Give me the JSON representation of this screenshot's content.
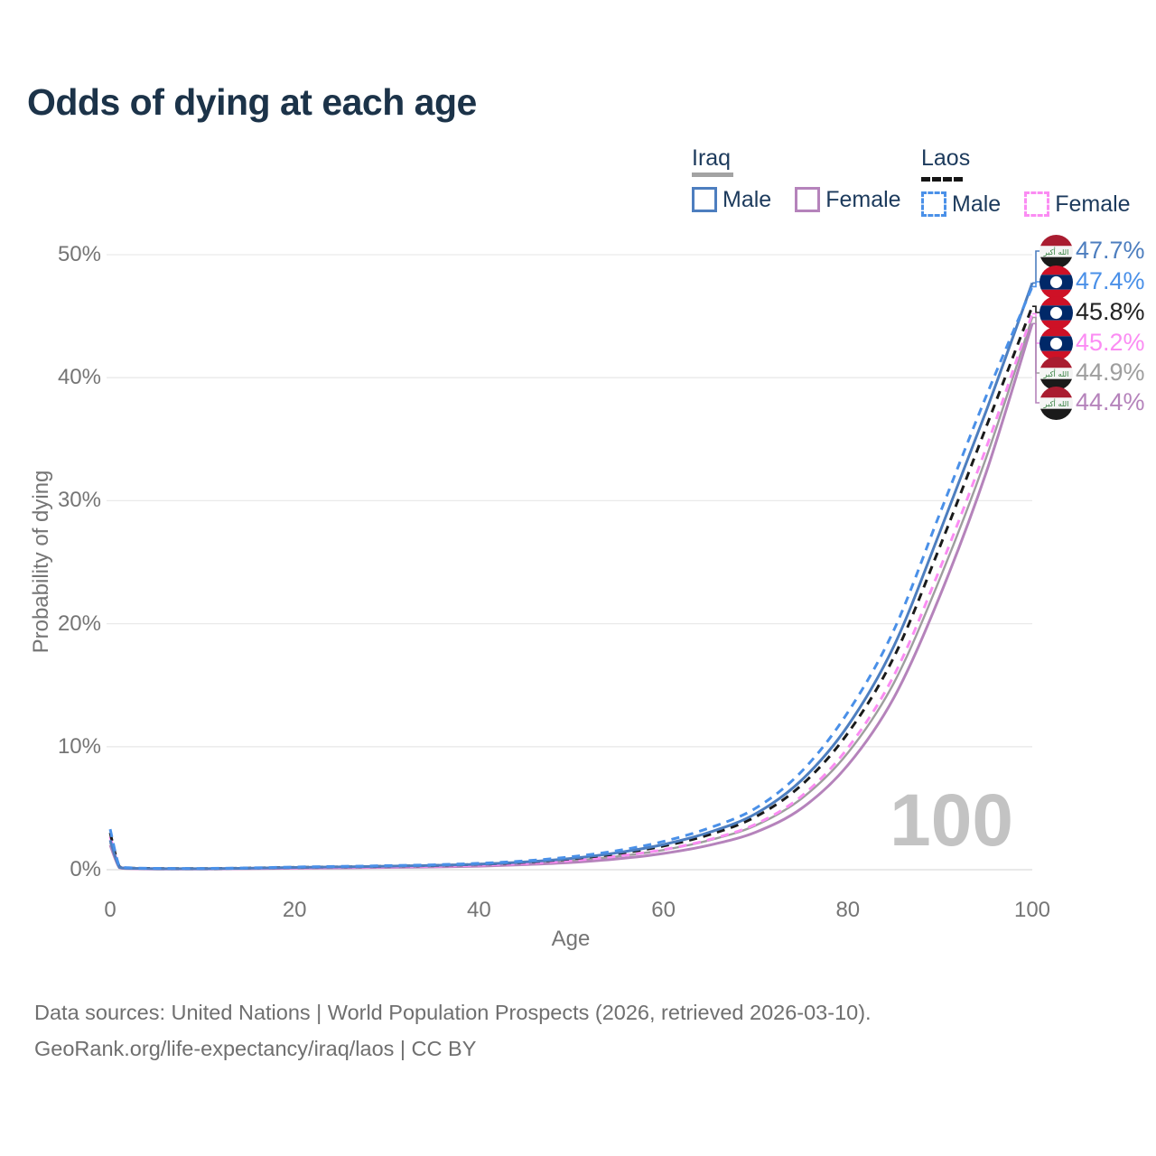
{
  "title": "Odds of dying at each age",
  "watermark_age": "100",
  "footer": {
    "line1": "Data sources: United Nations | World Population Prospects (2026, retrieved 2026-03-10).",
    "line2": "GeoRank.org/life-expectancy/iraq/laos | CC BY"
  },
  "legend": {
    "groups": [
      {
        "country": "Iraq",
        "line_style": "solid",
        "underline_color": "#a3a3a3",
        "items": [
          {
            "label": "Male",
            "color": "#4d7ebf",
            "dashed": false
          },
          {
            "label": "Female",
            "color": "#b583bb",
            "dashed": false
          }
        ]
      },
      {
        "country": "Laos",
        "line_style": "dashed",
        "underline_color": "#151515",
        "items": [
          {
            "label": "Male",
            "color": "#4a90e8",
            "dashed": true
          },
          {
            "label": "Female",
            "color": "#fb8cf3",
            "dashed": true
          }
        ]
      }
    ]
  },
  "chart_data": {
    "type": "line",
    "title": "Odds of dying at each age",
    "xlabel": "Age",
    "ylabel": "Probability of dying",
    "xlim": [
      0,
      100
    ],
    "ylim": [
      0,
      50
    ],
    "grid": "horizontal",
    "legend_position": "top-right",
    "x_ticks": [
      "0",
      "20",
      "40",
      "60",
      "80",
      "100"
    ],
    "x_tick_values": [
      0,
      20,
      40,
      60,
      80,
      100
    ],
    "y_ticks": [
      "0%",
      "10%",
      "20%",
      "30%",
      "40%",
      "50%"
    ],
    "y_tick_values": [
      0,
      10,
      20,
      30,
      40,
      50
    ],
    "ages": [
      0,
      1,
      2,
      5,
      10,
      15,
      20,
      25,
      30,
      35,
      40,
      45,
      50,
      55,
      60,
      65,
      70,
      75,
      80,
      85,
      90,
      95,
      100
    ],
    "series": [
      {
        "name": "Iraq Male",
        "country": "Iraq",
        "sex": "male",
        "color": "#4d7ebf",
        "dashed": false,
        "end_label": "47.7%",
        "end_value": 47.7,
        "values": [
          2.4,
          0.2,
          0.12,
          0.08,
          0.08,
          0.12,
          0.18,
          0.23,
          0.29,
          0.35,
          0.45,
          0.63,
          0.92,
          1.38,
          2.05,
          3.05,
          4.55,
          7.3,
          11.7,
          18.2,
          27.5,
          37.3,
          47.7
        ]
      },
      {
        "name": "Laos Male",
        "country": "Laos",
        "sex": "male",
        "color": "#4a90e8",
        "dashed": true,
        "end_label": "47.4%",
        "end_value": 47.4,
        "values": [
          3.3,
          0.28,
          0.16,
          0.11,
          0.1,
          0.15,
          0.22,
          0.27,
          0.33,
          0.4,
          0.52,
          0.72,
          1.05,
          1.55,
          2.3,
          3.4,
          5.0,
          8.0,
          12.8,
          19.5,
          29.0,
          38.5,
          47.4
        ]
      },
      {
        "name": "Laos",
        "country": "Laos",
        "sex": "total",
        "color": "#1a1a1a",
        "dashed": true,
        "end_label": "45.8%",
        "end_value": 45.8,
        "values": [
          3.0,
          0.25,
          0.14,
          0.1,
          0.09,
          0.13,
          0.19,
          0.23,
          0.28,
          0.34,
          0.44,
          0.6,
          0.88,
          1.3,
          1.92,
          2.85,
          4.3,
          6.9,
          11.1,
          17.3,
          26.3,
          36.0,
          45.8
        ]
      },
      {
        "name": "Laos Female",
        "country": "Laos",
        "sex": "female",
        "color": "#fb8cf3",
        "dashed": true,
        "end_label": "45.2%",
        "end_value": 45.2,
        "values": [
          2.7,
          0.22,
          0.12,
          0.08,
          0.07,
          0.11,
          0.15,
          0.18,
          0.23,
          0.28,
          0.37,
          0.51,
          0.74,
          1.1,
          1.63,
          2.45,
          3.7,
          6.0,
          9.9,
          15.8,
          24.5,
          34.3,
          45.2
        ]
      },
      {
        "name": "Iraq",
        "country": "Iraq",
        "sex": "total",
        "color": "#9e9e9e",
        "dashed": false,
        "end_label": "44.9%",
        "end_value": 44.9,
        "values": [
          2.2,
          0.18,
          0.1,
          0.07,
          0.07,
          0.1,
          0.15,
          0.18,
          0.23,
          0.28,
          0.36,
          0.5,
          0.73,
          1.08,
          1.6,
          2.4,
          3.6,
          5.8,
          9.5,
          15.2,
          23.7,
          33.5,
          44.9
        ]
      },
      {
        "name": "Iraq Female",
        "country": "Iraq",
        "sex": "female",
        "color": "#b583bb",
        "dashed": false,
        "end_label": "44.4%",
        "end_value": 44.4,
        "values": [
          2.0,
          0.16,
          0.09,
          0.06,
          0.06,
          0.08,
          0.12,
          0.15,
          0.18,
          0.22,
          0.29,
          0.41,
          0.59,
          0.88,
          1.32,
          2.0,
          3.05,
          5.0,
          8.5,
          14.0,
          22.3,
          32.3,
          44.4
        ]
      }
    ]
  }
}
